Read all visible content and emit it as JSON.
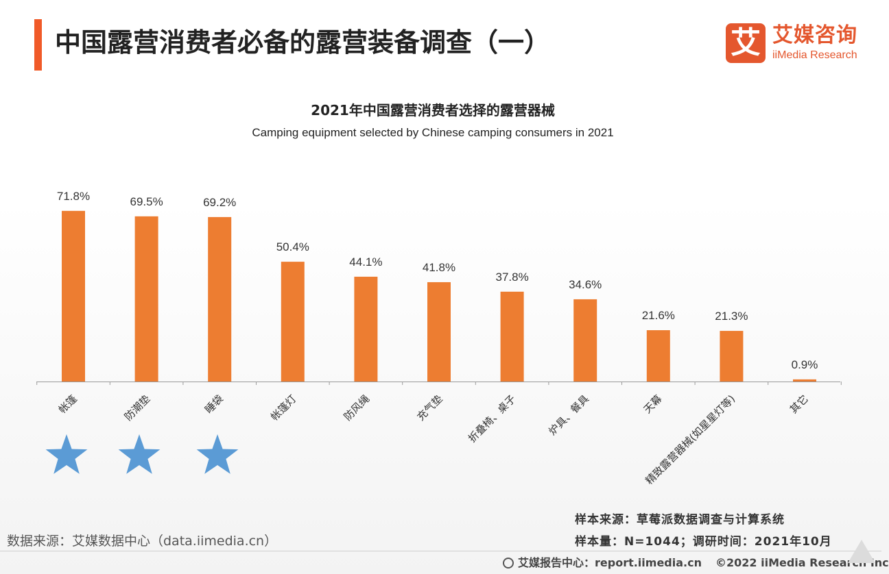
{
  "header": {
    "title": "中国露营消费者必备的露营装备调查（一）",
    "accent_color": "#f05a28"
  },
  "logo": {
    "mark": "艾",
    "name_cn": "艾媒咨询",
    "name_en": "iiMedia Research",
    "color": "#e4572e"
  },
  "chart_data": {
    "type": "bar",
    "title": "2021年中国露营消费者选择的露营器械",
    "subtitle": "Camping equipment selected by Chinese camping consumers in 2021",
    "categories": [
      "帐篷",
      "防潮垫",
      "睡袋",
      "帐篷灯",
      "防风绳",
      "充气垫",
      "折叠椅、桌子",
      "炉具、餐具",
      "天幕",
      "精致露营器械(如星星灯等)",
      "其它"
    ],
    "values": [
      71.8,
      69.5,
      69.2,
      50.4,
      44.1,
      41.8,
      37.8,
      34.6,
      21.6,
      21.3,
      0.9
    ],
    "value_suffix": "%",
    "ylim": [
      0,
      80
    ],
    "grid": false,
    "bar_color": "#ed7d31",
    "highlighted_categories": [
      "帐篷",
      "防潮垫",
      "睡袋"
    ],
    "highlight_icon": "star-icon",
    "highlight_color": "#5b9bd5"
  },
  "sources": {
    "sample_source": "样本来源：草莓派数据调查与计算系统",
    "sample_info": "样本量：N=1044；调研时间：2021年10月",
    "data_source": "数据来源：艾媒数据中心（data.iimedia.cn）"
  },
  "footer": {
    "report_center": "艾媒报告中心：report.iimedia.cn",
    "copyright": "©2022  iiMedia Research  Inc"
  }
}
